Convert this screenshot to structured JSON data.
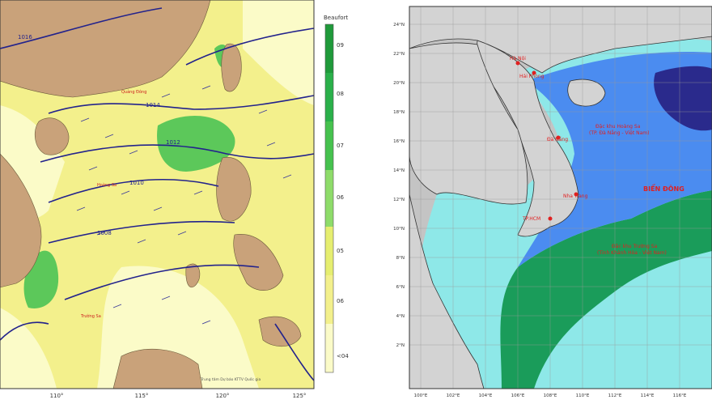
{
  "left_map": {
    "colorbar": {
      "title": "Beaufort",
      "ticks": [
        "09",
        "08",
        "07",
        "06",
        "05",
        "06",
        "<04"
      ]
    },
    "lon_labels": [
      "110°",
      "115°",
      "120°",
      "125°"
    ],
    "place_labels": [
      "Quảng Đông",
      "Hoàng Sa",
      "Trường Sa"
    ],
    "isobar_labels": [
      "1016",
      "1014",
      "1012",
      "1010",
      "1008"
    ],
    "credit": "Trung tâm Dự báo KTTV Quốc gia",
    "colors": {
      "land": "#c9a27a",
      "yellow": "#f3f08c",
      "lightyellow": "#fbfbc8",
      "green": "#5cc85a",
      "isobar": "#23238c"
    }
  },
  "right_map": {
    "lat_labels": [
      "24°N",
      "22°N",
      "20°N",
      "18°N",
      "16°N",
      "14°N",
      "12°N",
      "10°N",
      "8°N",
      "6°N",
      "4°N",
      "2°N"
    ],
    "lon_labels": [
      "100°E",
      "102°E",
      "104°E",
      "106°E",
      "108°E",
      "110°E",
      "112°E",
      "114°E",
      "116°E"
    ],
    "labels": {
      "bien_dong": "BIỂN ĐÔNG",
      "hoang_sa": "Đặc khu Hoàng Sa",
      "hoang_sa_sub": "(TP. Đà Nẵng - Việt Nam)",
      "truong_sa": "Đặc khu Trường Sa",
      "truong_sa_sub": "(Tỉnh Khánh Hòa - Việt Nam)",
      "ha_noi": "Hà Nội",
      "hai_phong": "Hải Phòng",
      "da_nang": "Đà Nẵng",
      "nha_trang": "Nha Trang",
      "tp_hcm": "TP.HCM"
    },
    "colors": {
      "land": "#d3d3d3",
      "bg": "#c4c4c4",
      "shallow": "#8ee8e8",
      "green": "#1a9c5a",
      "blue": "#4b8cf0",
      "navy": "#2a2a8c",
      "text_red": "#e02020"
    }
  }
}
